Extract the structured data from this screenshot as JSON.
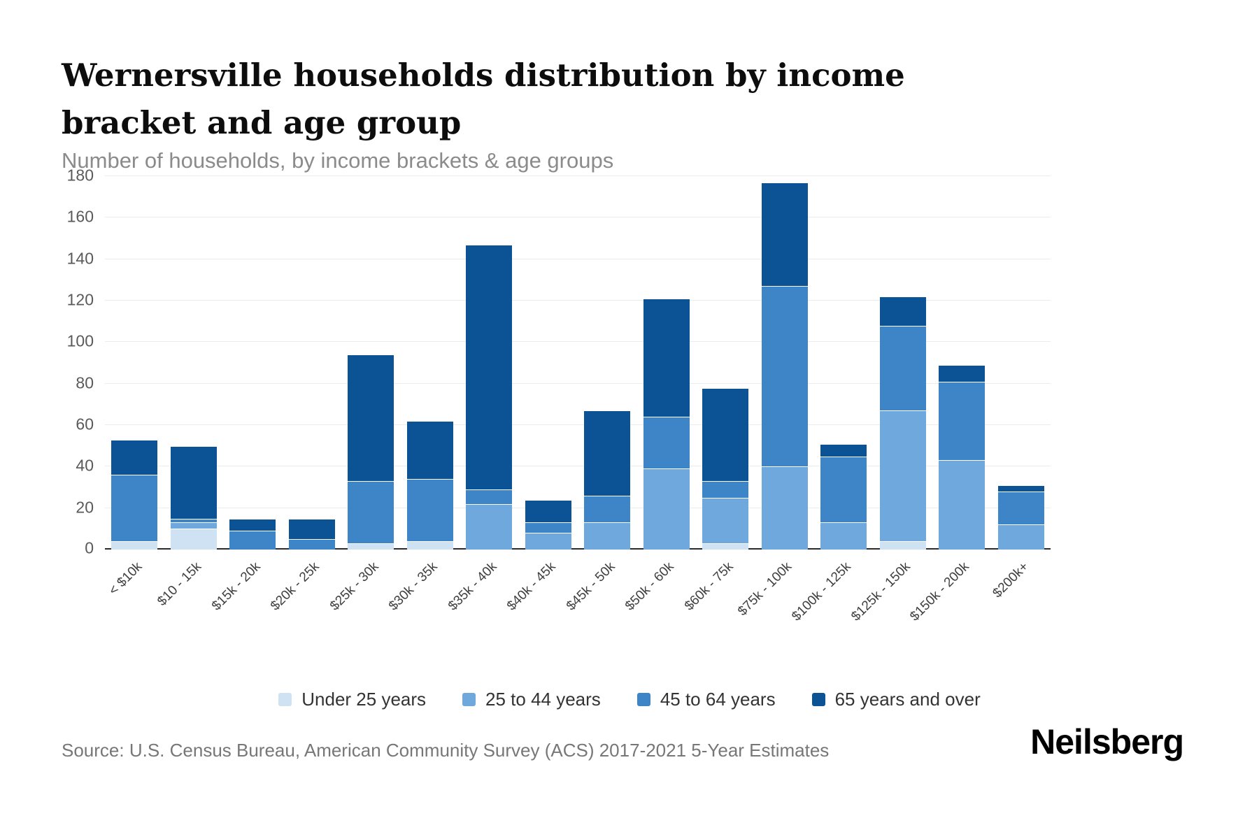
{
  "header": {
    "title": "Wernersville households distribution by income bracket and age group",
    "subtitle": "Number of households, by income brackets & age groups"
  },
  "footer": {
    "source": "Source: U.S. Census Bureau, American Community Survey (ACS) 2017-2021 5-Year Estimates",
    "brand": "Neilsberg"
  },
  "chart_data": {
    "type": "bar",
    "stacked": true,
    "title": "Wernersville households distribution by income bracket and age group",
    "subtitle": "Number of households, by income brackets & age groups",
    "xlabel": "",
    "ylabel": "Number of households",
    "ylim": [
      0,
      180
    ],
    "yticks": [
      0,
      20,
      40,
      60,
      80,
      100,
      120,
      140,
      160,
      180
    ],
    "grid": true,
    "legend_position": "bottom",
    "categories": [
      "< $10k",
      "$10 - 15k",
      "$15k - 20k",
      "$20k - 25k",
      "$25k - 30k",
      "$30k - 35k",
      "$35k - 40k",
      "$40k - 45k",
      "$45k - 50k",
      "$50k - 60k",
      "$60k - 75k",
      "$75k - 100k",
      "$100k - 125k",
      "$125k - 150k",
      "$150k - 200k",
      "$200k+"
    ],
    "series": [
      {
        "name": "Under 25 years",
        "color": "#cfe2f3",
        "values": [
          4,
          10,
          0,
          0,
          3,
          4,
          0,
          0,
          0,
          0,
          3,
          0,
          0,
          4,
          0,
          0
        ]
      },
      {
        "name": "25 to 44 years",
        "color": "#6fa8dc",
        "values": [
          0,
          3,
          0,
          0,
          0,
          0,
          22,
          8,
          13,
          39,
          22,
          40,
          13,
          63,
          43,
          12
        ]
      },
      {
        "name": "45 to 64 years",
        "color": "#3d85c6",
        "values": [
          32,
          2,
          9,
          5,
          30,
          30,
          7,
          5,
          13,
          25,
          8,
          87,
          32,
          41,
          38,
          16
        ]
      },
      {
        "name": "65 years and over",
        "color": "#0b5394",
        "values": [
          17,
          35,
          6,
          10,
          61,
          28,
          118,
          11,
          41,
          57,
          45,
          50,
          6,
          14,
          8,
          3
        ]
      }
    ],
    "totals": [
      53,
      50,
      15,
      15,
      94,
      62,
      147,
      24,
      67,
      121,
      78,
      177,
      51,
      122,
      89,
      31
    ]
  }
}
